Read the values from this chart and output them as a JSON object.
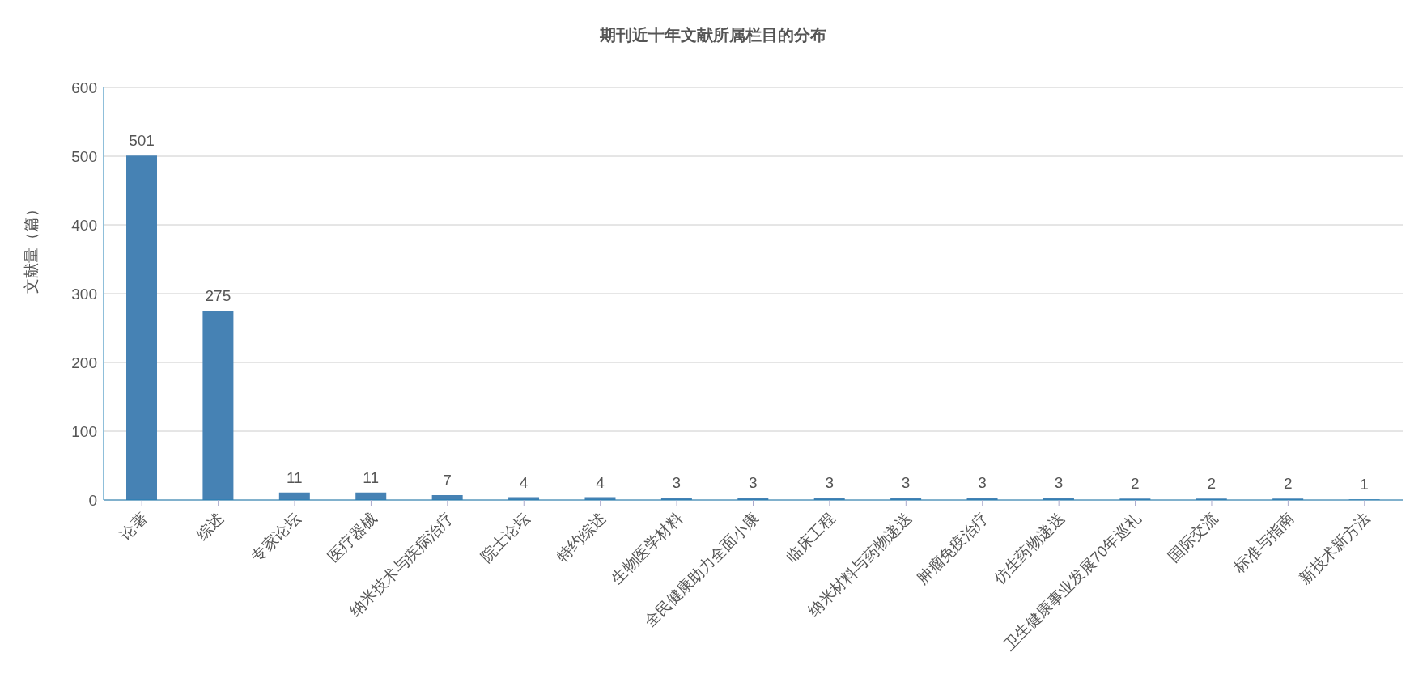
{
  "chart_data": {
    "type": "bar",
    "title": "期刊近十年文献所属栏目的分布",
    "ylabel": "文献量（篇）",
    "categories": [
      "论著",
      "综述",
      "专家论坛",
      "医疗器械",
      "纳米技术与疾病治疗",
      "院士论坛",
      "特约综述",
      "生物医学材料",
      "全民健康助力全面小康",
      "临床工程",
      "纳米材料与药物递送",
      "肿瘤免疫治疗",
      "仿生药物递送",
      "卫生健康事业发展70年巡礼",
      "国际交流",
      "标准与指南",
      "新技术新方法"
    ],
    "values": [
      501,
      275,
      11,
      11,
      7,
      4,
      4,
      3,
      3,
      3,
      3,
      3,
      3,
      2,
      2,
      2,
      1
    ],
    "color": "#4682b4",
    "ylim": [
      0,
      600
    ],
    "yticks": [
      0,
      100,
      200,
      300,
      400,
      500,
      600
    ],
    "grid": "y",
    "data_labels": true
  }
}
